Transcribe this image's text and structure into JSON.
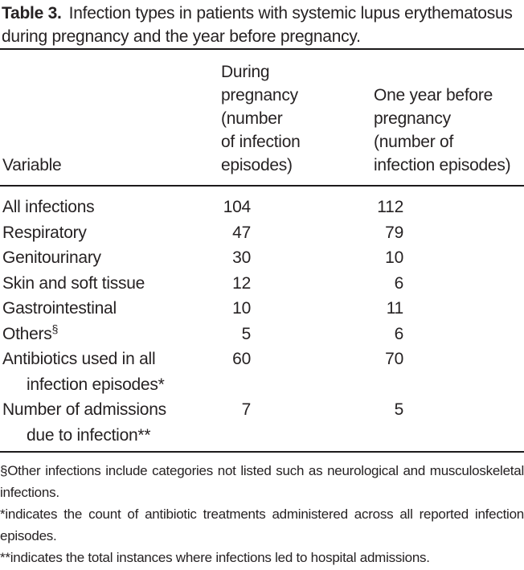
{
  "title": {
    "label": "Table 3.",
    "text": "Infection types in patients with systemic lupus erythematosus during pregnancy and the year before pregnancy."
  },
  "table": {
    "columns": [
      "Variable",
      "During\npregnancy\n(number\nof infection\nepisodes)",
      "One year before\npregnancy\n(number of\ninfection episodes)"
    ],
    "rows": [
      {
        "label": "All infections",
        "during": "104",
        "before": "112"
      },
      {
        "label": "Respiratory",
        "during": "47",
        "before": "79"
      },
      {
        "label": "Genitourinary",
        "during": "30",
        "before": "10"
      },
      {
        "label": "Skin and soft tissue",
        "during": "12",
        "before": "6"
      },
      {
        "label": "Gastrointestinal",
        "during": "10",
        "before": "11"
      },
      {
        "label": "Others",
        "label_sup": "§",
        "during": "5",
        "before": "6"
      },
      {
        "label": "Antibiotics used in all",
        "label2": "infection episodes*",
        "during": "60",
        "before": "70"
      },
      {
        "label": "Number of admissions",
        "label2": "due to infection**",
        "during": "7",
        "before": "5"
      }
    ]
  },
  "footnotes": [
    "§Other infections include categories not listed such as neurological and musculoskeletal infections.",
    "*indicates the count of antibiotic treatments administered across all reported infection episodes.",
    "**indicates the total instances where infections led to hospital admissions."
  ]
}
